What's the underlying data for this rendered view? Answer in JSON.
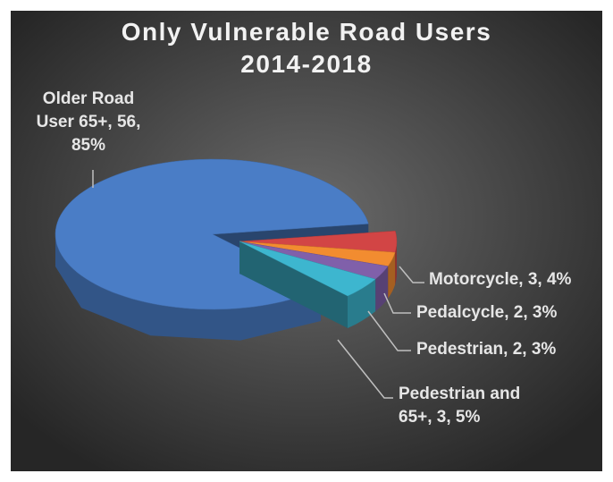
{
  "chart_data": {
    "type": "pie3d",
    "title": "Only Vulnerable Road Users 2014-2018",
    "values": [
      56,
      3,
      2,
      2,
      3
    ],
    "value_labels": [
      "Older Road User 65+, 56, 85%",
      "Motorcycle, 3, 4%",
      "Pedalcycle, 2, 3%",
      "Pedestrian, 2, 3%",
      "Pedestrian and 65+, 3, 5%"
    ],
    "colors": [
      "#4a7dc6",
      "#d24545",
      "#f28c30",
      "#8060aa",
      "#3db6cf"
    ],
    "exploded": [
      false,
      true,
      true,
      true,
      true
    ]
  }
}
